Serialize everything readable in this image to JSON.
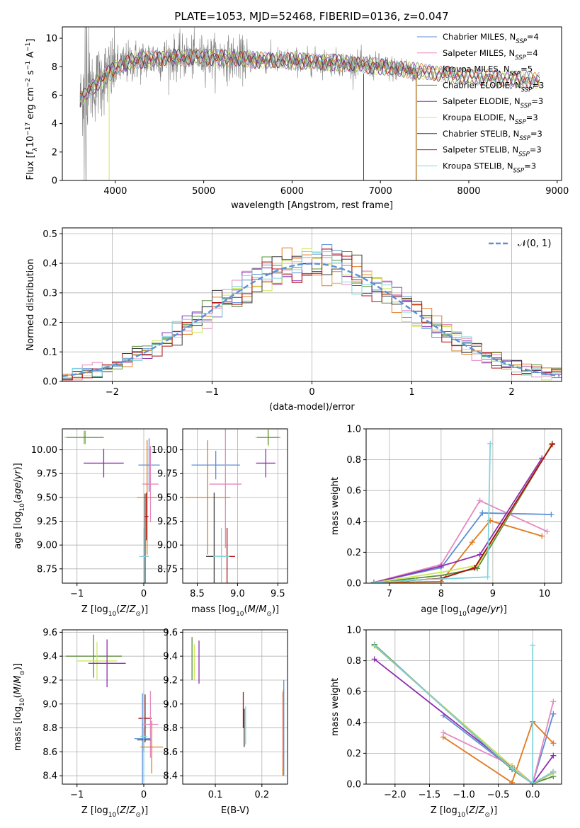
{
  "figure": {
    "title": "PLATE=1053, MJD=52468, FIBERID=0136, z=0.047"
  },
  "models": [
    {
      "name": "Chabrier MILES, N",
      "sub": "SSP",
      "suffix": "=4",
      "color": "#5b8fd6"
    },
    {
      "name": "Salpeter MILES, N",
      "sub": "SSP",
      "suffix": "=4",
      "color": "#e58ac0"
    },
    {
      "name": "Kroupa MILES, N",
      "sub": "SSP",
      "suffix": "=5",
      "color": "#e07b20"
    },
    {
      "name": "Chabrier ELODIE, N",
      "sub": "SSP",
      "suffix": "=3",
      "color": "#5a8f3c"
    },
    {
      "name": "Salpeter ELODIE, N",
      "sub": "SSP",
      "suffix": "=3",
      "color": "#8e2fb0"
    },
    {
      "name": "Kroupa ELODIE, N",
      "sub": "SSP",
      "suffix": "=3",
      "color": "#cde85a"
    },
    {
      "name": "Chabrier STELIB, N",
      "sub": "SSP",
      "suffix": "=3",
      "color": "#3a3a3a"
    },
    {
      "name": "Salpeter STELIB, N",
      "sub": "SSP",
      "suffix": "=3",
      "color": "#b01010"
    },
    {
      "name": "Kroupa STELIB, N",
      "sub": "SSP",
      "suffix": "=3",
      "color": "#7fd6dd"
    }
  ],
  "chart_data": [
    {
      "id": "spectrum",
      "type": "line",
      "xlabel": "wavelength [Angstrom, rest frame]",
      "ylabel_parts": [
        "Flux [f",
        "λ",
        "10",
        "−17",
        " erg cm",
        "−2",
        " s",
        "−1",
        " A",
        "−1",
        "]"
      ],
      "xlim": [
        3400,
        9050
      ],
      "ylim": [
        0,
        10.8
      ],
      "xticks": [
        4000,
        5000,
        6000,
        7000,
        8000,
        9000
      ],
      "yticks": [
        0,
        2,
        4,
        6,
        8,
        10
      ],
      "data_color": "#7f7f7f",
      "data_range": [
        3600,
        7400
      ],
      "model_range": [
        3600,
        8800
      ],
      "continuum": {
        "x": [
          3600,
          3700,
          3800,
          3900,
          4000,
          4200,
          4500,
          5000,
          5500,
          6000,
          6500,
          7000,
          7400,
          8000,
          8800
        ],
        "y": [
          5.6,
          6.3,
          6.9,
          7.4,
          7.9,
          8.4,
          8.6,
          8.7,
          8.5,
          8.4,
          8.3,
          8.0,
          7.7,
          7.3,
          7.0
        ]
      }
    },
    {
      "id": "residuals",
      "type": "histogram",
      "xlabel": "(data-model)/error",
      "ylabel": "Normed distribution",
      "xlim": [
        -2.5,
        2.5
      ],
      "ylim": [
        0,
        0.52
      ],
      "xticks": [
        -2,
        -1,
        0,
        1,
        2
      ],
      "yticks": [
        0.0,
        0.1,
        0.2,
        0.3,
        0.4,
        0.5
      ],
      "legend_label": "𝒩(0, 1)",
      "gauss_color": "#5b8fd6",
      "bin_width": 0.1
    },
    {
      "id": "age-vs-Z",
      "type": "errorbar",
      "xlabel": "Z [log10(Z/Z⊙)]",
      "ylabel": "age [log10(age/yr)]",
      "xlim": [
        -1.22,
        0.35
      ],
      "ylim": [
        8.6,
        10.22
      ],
      "xticks": [
        -1,
        0
      ],
      "yticks": [
        8.75,
        9.0,
        9.25,
        9.5,
        9.75,
        10.0
      ],
      "points": [
        {
          "m": 5,
          "x": -0.9,
          "y": 10.13,
          "xe": 0.3,
          "ye": 0.07
        },
        {
          "m": 3,
          "x": -0.88,
          "y": 10.13,
          "xe": 0.28,
          "ye": 0.07
        },
        {
          "m": 4,
          "x": -0.6,
          "y": 9.86,
          "xe": 0.3,
          "ye": 0.15
        },
        {
          "m": 0,
          "x": 0.08,
          "y": 9.84,
          "xe": 0.16,
          "ye": 0.28
        },
        {
          "m": 1,
          "x": 0.1,
          "y": 9.64,
          "xe": 0.12,
          "ye": 0.4
        },
        {
          "m": 2,
          "x": 0.05,
          "y": 9.5,
          "xe": 0.15,
          "ye": 0.6
        },
        {
          "m": 6,
          "x": 0.02,
          "y": 8.88,
          "xe": 0.05,
          "ye": 0.66
        },
        {
          "m": 8,
          "x": 0.0,
          "y": 8.88,
          "xe": 0.07,
          "ye": 0.3
        },
        {
          "m": 7,
          "x": 0.04,
          "y": 9.3,
          "xe": 0.03,
          "ye": 0.25
        }
      ]
    },
    {
      "id": "age-vs-mass",
      "type": "errorbar",
      "xlabel": "mass [log10(M/M⊙)]",
      "ylabel": "",
      "xlim": [
        8.32,
        9.62
      ],
      "ylim": [
        8.6,
        10.22
      ],
      "xticks": [
        8.5,
        9.0,
        9.5
      ],
      "yticks": [
        8.75,
        9.0,
        9.25,
        9.5,
        9.75,
        10.0
      ],
      "points": [
        {
          "m": 5,
          "x": 9.38,
          "y": 10.13,
          "xe": 0.16,
          "ye": 0.1
        },
        {
          "m": 3,
          "x": 9.38,
          "y": 10.13,
          "xe": 0.14,
          "ye": 0.08
        },
        {
          "m": 4,
          "x": 9.35,
          "y": 9.86,
          "xe": 0.12,
          "ye": 0.15
        },
        {
          "m": 0,
          "x": 8.73,
          "y": 9.84,
          "xe": 0.3,
          "ye": 0.15
        },
        {
          "m": 1,
          "x": 8.85,
          "y": 9.64,
          "xe": 0.2,
          "ye": 0.67
        },
        {
          "m": 2,
          "x": 8.63,
          "y": 9.5,
          "xe": 0.28,
          "ye": 0.6
        },
        {
          "m": 6,
          "x": 8.71,
          "y": 8.88,
          "xe": 0.1,
          "ye": 0.67
        },
        {
          "m": 7,
          "x": 8.87,
          "y": 8.88,
          "xe": 0.1,
          "ye": 0.3
        },
        {
          "m": 8,
          "x": 8.8,
          "y": 8.88,
          "xe": 0.1,
          "ye": 0.3
        }
      ]
    },
    {
      "id": "weight-vs-age",
      "type": "line",
      "xlabel": "age [log10(age/yr)]",
      "ylabel": "mass weight",
      "xlim": [
        6.55,
        10.33
      ],
      "ylim": [
        0,
        1.0
      ],
      "xticks": [
        7,
        8,
        9,
        10
      ],
      "yticks": [
        0.0,
        0.2,
        0.4,
        0.6,
        0.8,
        1.0
      ],
      "series": [
        {
          "m": 0,
          "x": [
            6.7,
            8.0,
            8.8,
            10.13
          ],
          "y": [
            0.005,
            0.1,
            0.455,
            0.445
          ]
        },
        {
          "m": 1,
          "x": [
            6.7,
            8.0,
            8.75,
            10.05
          ],
          "y": [
            0.005,
            0.12,
            0.535,
            0.335
          ]
        },
        {
          "m": 2,
          "x": [
            6.7,
            8.0,
            8.6,
            8.95,
            9.95
          ],
          "y": [
            0.003,
            0.01,
            0.265,
            0.405,
            0.305
          ]
        },
        {
          "m": 3,
          "x": [
            6.7,
            8.0,
            8.7,
            10.15
          ],
          "y": [
            0.003,
            0.05,
            0.095,
            0.905
          ]
        },
        {
          "m": 4,
          "x": [
            6.7,
            8.0,
            8.75,
            9.95
          ],
          "y": [
            0.003,
            0.11,
            0.185,
            0.81
          ]
        },
        {
          "m": 5,
          "x": [
            6.7,
            8.0,
            8.7,
            10.13
          ],
          "y": [
            0.003,
            0.07,
            0.115,
            0.895
          ]
        },
        {
          "m": 6,
          "x": [
            6.7,
            8.0,
            8.65,
            10.15
          ],
          "y": [
            0.003,
            0.03,
            0.1,
            0.9
          ]
        },
        {
          "m": 7,
          "x": [
            6.7,
            8.0,
            8.65,
            10.15
          ],
          "y": [
            0.003,
            0.03,
            0.1,
            0.9
          ]
        },
        {
          "m": 8,
          "x": [
            6.7,
            7.5,
            8.9,
            8.95
          ],
          "y": [
            0.003,
            0.02,
            0.04,
            0.905
          ]
        }
      ]
    },
    {
      "id": "mass-vs-Z",
      "type": "errorbar",
      "xlabel": "Z [log10(Z/Z⊙)]",
      "ylabel": "mass [log10(M/M⊙)]",
      "xlim": [
        -1.22,
        0.35
      ],
      "ylim": [
        8.33,
        9.62
      ],
      "xticks": [
        -1,
        0
      ],
      "yticks": [
        8.4,
        8.6,
        8.8,
        9.0,
        9.2,
        9.4,
        9.6
      ],
      "points": [
        {
          "m": 3,
          "x": -0.75,
          "y": 9.4,
          "xe": 0.42,
          "ye": 0.18
        },
        {
          "m": 5,
          "x": -0.7,
          "y": 9.36,
          "xe": 0.3,
          "ye": 0.16
        },
        {
          "m": 4,
          "x": -0.55,
          "y": 9.34,
          "xe": 0.28,
          "ye": 0.2
        },
        {
          "m": 7,
          "x": 0.02,
          "y": 8.88,
          "xe": 0.1,
          "ye": 0.2
        },
        {
          "m": 1,
          "x": 0.1,
          "y": 8.83,
          "xe": 0.12,
          "ye": 0.28
        },
        {
          "m": 0,
          "x": -0.02,
          "y": 8.71,
          "xe": 0.12,
          "ye": 0.38
        },
        {
          "m": 6,
          "x": 0.0,
          "y": 8.7,
          "xe": 0.1,
          "ye": 0.1
        },
        {
          "m": 8,
          "x": 0.0,
          "y": 8.73,
          "xe": 0.05,
          "ye": 0.38
        },
        {
          "m": 2,
          "x": 0.12,
          "y": 8.64,
          "xe": 0.17,
          "ye": 0.22
        }
      ]
    },
    {
      "id": "mass-vs-EBV",
      "type": "errorbar",
      "xlabel": "E(B-V)",
      "ylabel": "",
      "xlim": [
        0.03,
        0.255
      ],
      "ylim": [
        8.33,
        9.62
      ],
      "xticks": [
        0.1,
        0.2
      ],
      "yticks": [
        8.4,
        8.6,
        8.8,
        9.0,
        9.2,
        9.4,
        9.6
      ],
      "points": [
        {
          "m": 3,
          "x": 0.05,
          "y": 9.38,
          "xe": 0,
          "ye": 0.18
        },
        {
          "m": 5,
          "x": 0.055,
          "y": 9.35,
          "xe": 0,
          "ye": 0.15
        },
        {
          "m": 4,
          "x": 0.065,
          "y": 9.35,
          "xe": 0,
          "ye": 0.18
        },
        {
          "m": 7,
          "x": 0.16,
          "y": 8.95,
          "xe": 0,
          "ye": 0.15
        },
        {
          "m": 6,
          "x": 0.162,
          "y": 8.8,
          "xe": 0,
          "ye": 0.16
        },
        {
          "m": 8,
          "x": 0.165,
          "y": 8.82,
          "xe": 0,
          "ye": 0.16
        },
        {
          "m": 2,
          "x": 0.245,
          "y": 8.75,
          "xe": 0,
          "ye": 0.35
        },
        {
          "m": 1,
          "x": 0.246,
          "y": 8.8,
          "xe": 0,
          "ye": 0.32
        },
        {
          "m": 0,
          "x": 0.247,
          "y": 8.8,
          "xe": 0,
          "ye": 0.4
        }
      ]
    },
    {
      "id": "weight-vs-Z",
      "type": "line",
      "xlabel": "Z [log10(Z/Z⊙)]",
      "ylabel": "mass weight",
      "xlim": [
        -2.42,
        0.42
      ],
      "ylim": [
        0,
        1.0
      ],
      "xticks": [
        -2.0,
        -1.5,
        -1.0,
        -0.5,
        0.0
      ],
      "yticks": [
        0.0,
        0.2,
        0.4,
        0.6,
        0.8,
        1.0
      ],
      "series": [
        {
          "m": 0,
          "x": [
            -1.3,
            -0.3,
            0.0,
            0.3
          ],
          "y": [
            0.445,
            0.1,
            0.005,
            0.455
          ]
        },
        {
          "m": 1,
          "x": [
            -1.3,
            -0.3,
            0.0,
            0.3
          ],
          "y": [
            0.335,
            0.12,
            0.005,
            0.535
          ]
        },
        {
          "m": 2,
          "x": [
            -1.3,
            -0.3,
            0.0,
            0.3
          ],
          "y": [
            0.305,
            0.01,
            0.405,
            0.265
          ]
        },
        {
          "m": 3,
          "x": [
            -2.3,
            -0.3,
            0.0,
            0.3
          ],
          "y": [
            0.905,
            0.095,
            0.003,
            0.05
          ]
        },
        {
          "m": 4,
          "x": [
            -2.3,
            -0.3,
            0.0,
            0.3
          ],
          "y": [
            0.81,
            0.11,
            0.003,
            0.185
          ]
        },
        {
          "m": 5,
          "x": [
            -2.3,
            -0.3,
            0.0,
            0.3
          ],
          "y": [
            0.895,
            0.115,
            0.003,
            0.07
          ]
        },
        {
          "m": 6,
          "x": [
            -2.3,
            -0.3,
            0.0,
            0.3
          ],
          "y": [
            0.9,
            0.1,
            0.003,
            0.08
          ]
        },
        {
          "m": 7,
          "x": [
            -2.3,
            -0.3,
            0.0,
            0.3
          ],
          "y": [
            0.9,
            0.1,
            0.003,
            0.08
          ]
        },
        {
          "m": 8,
          "x": [
            -2.3,
            -0.3,
            0.0,
            0.3
          ],
          "y": [
            0.9,
            0.1,
            0.003,
            0.08
          ]
        },
        {
          "m": 8,
          "x": [
            0.0,
            0.0
          ],
          "y": [
            0.003,
            0.9
          ]
        }
      ]
    }
  ]
}
